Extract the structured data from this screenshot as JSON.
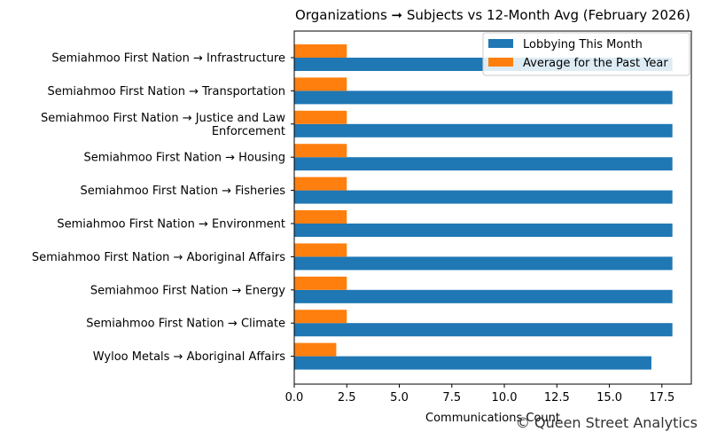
{
  "chart_data": {
    "type": "bar",
    "orientation": "horizontal",
    "title": "Organizations ➞ Subjects vs 12-Month Avg (February 2026)",
    "xlabel": "Communications Count",
    "ylabel": "",
    "categories": [
      "Semiahmoo First Nation → Infrastructure",
      "Semiahmoo First Nation → Transportation",
      "Semiahmoo First Nation → Justice and Law\nEnforcement",
      "Semiahmoo First Nation → Housing",
      "Semiahmoo First Nation → Fisheries",
      "Semiahmoo First Nation → Environment",
      "Semiahmoo First Nation → Aboriginal Affairs",
      "Semiahmoo First Nation → Energy",
      "Semiahmoo First Nation → Climate",
      "Wyloo Metals → Aboriginal Affairs"
    ],
    "series": [
      {
        "name": "Lobbying This Month",
        "color": "#1f77b4",
        "values": [
          18,
          18,
          18,
          18,
          18,
          18,
          18,
          18,
          18,
          17
        ]
      },
      {
        "name": "Average for the Past Year",
        "color": "#ff7f0e",
        "values": [
          2.5,
          2.5,
          2.5,
          2.5,
          2.5,
          2.5,
          2.5,
          2.5,
          2.5,
          2.0
        ]
      }
    ],
    "xlim": [
      0,
      18.9
    ],
    "xticks": [
      "0.0",
      "2.5",
      "5.0",
      "7.5",
      "10.0",
      "12.5",
      "15.0",
      "17.5"
    ],
    "xtick_values": [
      0,
      2.5,
      5,
      7.5,
      10,
      12.5,
      15,
      17.5
    ],
    "grid": false,
    "legend_position": "top-right"
  },
  "watermark": "© Queen Street Analytics"
}
